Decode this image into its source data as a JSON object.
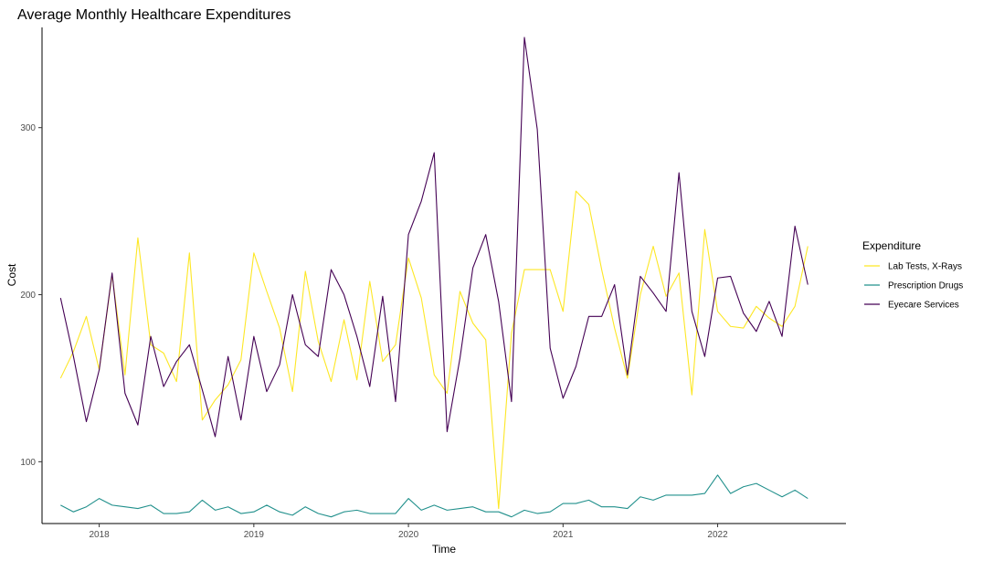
{
  "chart_data": {
    "type": "line",
    "title": "Average Monthly Healthcare Expenditures",
    "xlabel": "Time",
    "ylabel": "Cost",
    "xlim": [
      2017.63,
      2022.83
    ],
    "ylim": [
      63,
      360
    ],
    "x_ticks": [
      {
        "value": 2018,
        "label": "2018"
      },
      {
        "value": 2019,
        "label": "2019"
      },
      {
        "value": 2020,
        "label": "2020"
      },
      {
        "value": 2021,
        "label": "2021"
      },
      {
        "value": 2022,
        "label": "2022"
      }
    ],
    "y_ticks": [
      {
        "value": 100,
        "label": "100"
      },
      {
        "value": 200,
        "label": "200"
      },
      {
        "value": 300,
        "label": "300"
      }
    ],
    "grid": false,
    "legend": {
      "title": "Expenditure",
      "placement": "right"
    },
    "x": [
      "2017-10",
      "2017-11",
      "2017-12",
      "2018-01",
      "2018-02",
      "2018-03",
      "2018-04",
      "2018-05",
      "2018-06",
      "2018-07",
      "2018-08",
      "2018-09",
      "2018-10",
      "2018-11",
      "2018-12",
      "2019-01",
      "2019-02",
      "2019-03",
      "2019-04",
      "2019-05",
      "2019-06",
      "2019-07",
      "2019-08",
      "2019-09",
      "2019-10",
      "2019-11",
      "2019-12",
      "2020-01",
      "2020-02",
      "2020-03",
      "2020-04",
      "2020-05",
      "2020-06",
      "2020-07",
      "2020-08",
      "2020-09",
      "2020-10",
      "2020-11",
      "2020-12",
      "2021-01",
      "2021-02",
      "2021-03",
      "2021-04",
      "2021-05",
      "2021-06",
      "2021-07",
      "2021-08",
      "2021-09",
      "2021-10",
      "2021-11",
      "2021-12",
      "2022-01",
      "2022-02",
      "2022-03",
      "2022-04",
      "2022-05",
      "2022-06",
      "2022-07",
      "2022-08"
    ],
    "series": [
      {
        "name": "Lab Tests, X-Rays",
        "color": "#FDE725",
        "values": [
          150,
          166,
          187,
          155,
          212,
          152,
          234,
          170,
          165,
          148,
          225,
          125,
          137,
          146,
          161,
          225,
          202,
          180,
          142,
          214,
          172,
          148,
          185,
          149,
          208,
          160,
          170,
          222,
          198,
          152,
          141,
          202,
          183,
          173,
          72,
          177,
          215,
          215,
          215,
          190,
          262,
          254,
          215,
          180,
          150,
          200,
          229,
          199,
          213,
          140,
          239,
          190,
          181,
          180,
          193,
          186,
          181,
          193,
          229
        ]
      },
      {
        "name": "Prescription Drugs",
        "color": "#21908C",
        "values": [
          74,
          70,
          73,
          78,
          74,
          73,
          72,
          74,
          69,
          69,
          70,
          77,
          71,
          73,
          69,
          70,
          74,
          70,
          68,
          73,
          69,
          67,
          70,
          71,
          69,
          69,
          69,
          78,
          71,
          74,
          71,
          72,
          73,
          70,
          70,
          67,
          71,
          69,
          70,
          75,
          75,
          77,
          73,
          73,
          72,
          79,
          77,
          80,
          80,
          80,
          81,
          92,
          81,
          85,
          87,
          83,
          79,
          83,
          78
        ]
      },
      {
        "name": "Eyecare Services",
        "color": "#440154",
        "values": [
          198,
          163,
          124,
          155,
          213,
          141,
          122,
          175,
          145,
          160,
          170,
          143,
          115,
          163,
          125,
          175,
          142,
          158,
          200,
          170,
          163,
          215,
          200,
          175,
          145,
          199,
          136,
          236,
          256,
          285,
          118,
          162,
          216,
          236,
          196,
          136,
          354,
          299,
          168,
          138,
          157,
          187,
          187,
          206,
          152,
          211,
          201,
          190,
          273,
          190,
          163,
          210,
          211,
          189,
          178,
          196,
          175,
          241,
          206
        ]
      }
    ]
  }
}
